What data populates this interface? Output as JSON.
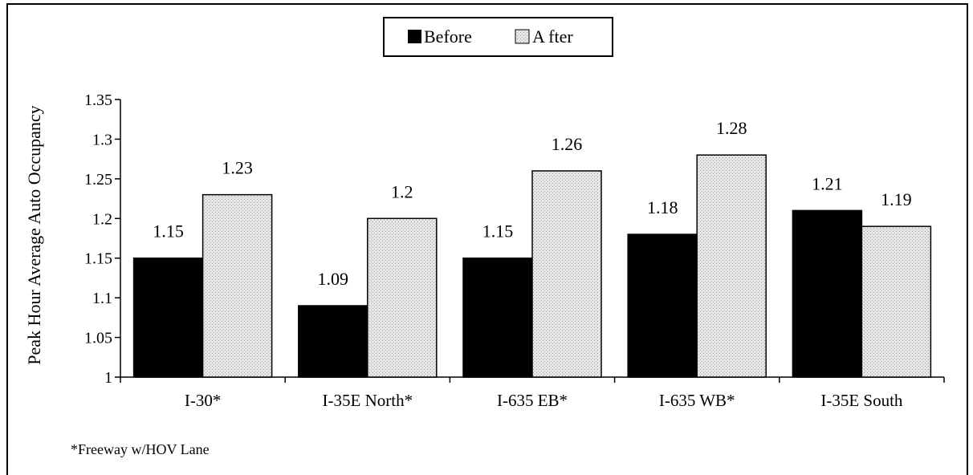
{
  "chart_data": {
    "type": "bar",
    "categories": [
      "I-30*",
      "I-35E North*",
      "I-635 EB*",
      "I-635 WB*",
      "I-35E South"
    ],
    "series": [
      {
        "name": "Before",
        "values": [
          1.15,
          1.09,
          1.15,
          1.18,
          1.21
        ],
        "color": "#000000"
      },
      {
        "name": "After",
        "values": [
          1.23,
          1.2,
          1.26,
          1.28,
          1.19
        ],
        "color": "#d9d9d9"
      }
    ],
    "data_labels": {
      "Before": [
        "1.15",
        "1.09",
        "1.15",
        "1.18",
        "1.21"
      ],
      "After": [
        "1.23",
        "1.2",
        "1.26",
        "1.28",
        "1.19"
      ]
    },
    "xlabel": "",
    "ylabel": "Peak Hour Average Auto Occupancy",
    "ylim": [
      1,
      1.35
    ],
    "yticks": [
      "1",
      "1.05",
      "1.1",
      "1.15",
      "1.2",
      "1.25",
      "1.3",
      "1.35"
    ],
    "legend": {
      "position": "top-center",
      "entries": [
        "Before",
        "A fter"
      ]
    },
    "grid": false
  },
  "footnote": "*Freeway w/HOV Lane"
}
